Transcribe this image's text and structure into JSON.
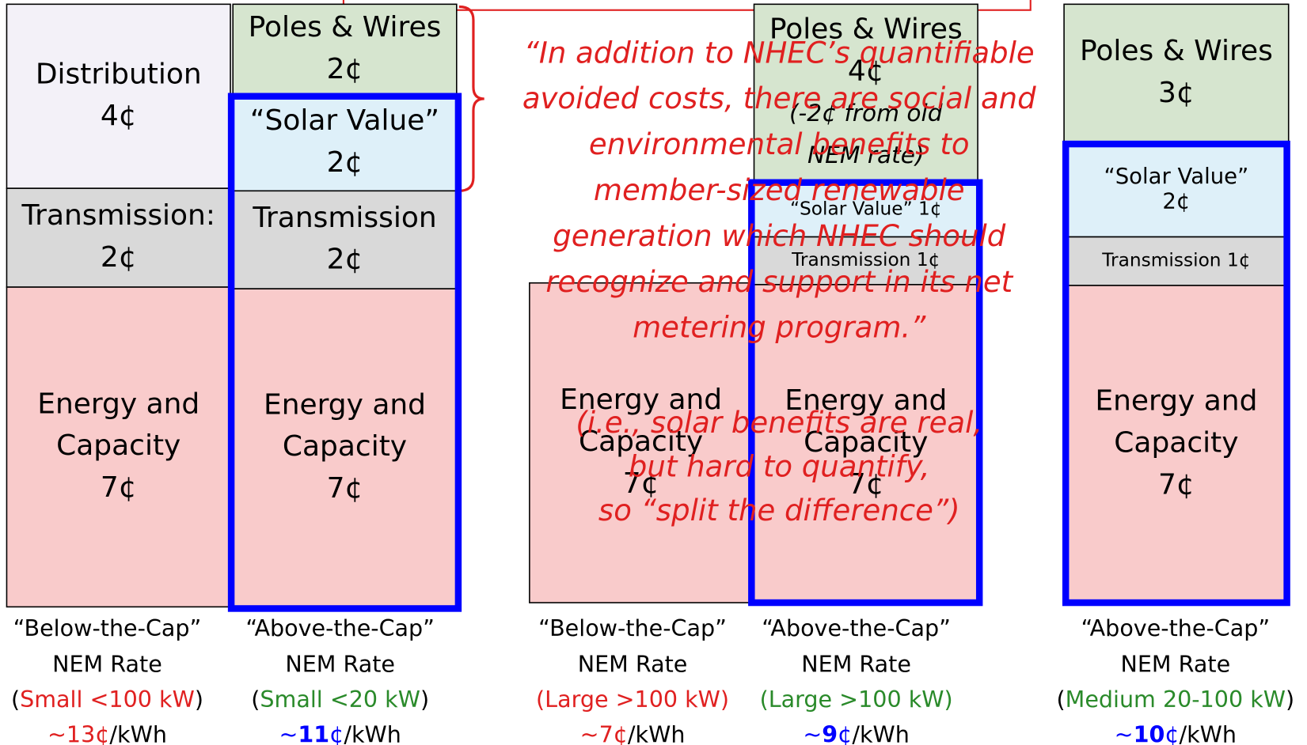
{
  "columns": [
    {
      "segments": [
        {
          "lines": [
            "Distribution",
            "4¢"
          ]
        },
        {
          "lines": [
            "Transmission:",
            "2¢"
          ]
        },
        {
          "lines": [
            "Energy and",
            "Capacity",
            "7¢"
          ]
        }
      ],
      "caption": [
        "“Below-the-Cap”",
        "NEM Rate"
      ],
      "size": [
        "(",
        "Small <100 kW",
        ")"
      ],
      "price": [
        "~13¢"
      ],
      "unit": "/kWh"
    },
    {
      "segments": [
        {
          "lines": [
            "Poles & Wires",
            "2¢"
          ]
        },
        {
          "lines": [
            "“Solar Value”",
            "2¢"
          ]
        },
        {
          "lines": [
            "Transmission",
            "2¢"
          ]
        },
        {
          "lines": [
            "Energy and",
            "Capacity",
            "7¢"
          ]
        }
      ],
      "caption": [
        "“Above-the-Cap”",
        "NEM Rate"
      ],
      "size": [
        "(",
        "Small <20 kW",
        ")"
      ],
      "price": [
        "~",
        "11",
        "¢"
      ],
      "unit": "/kWh"
    },
    {
      "segments": [
        {
          "lines": [
            "Energy and",
            "Capacity",
            "7¢"
          ]
        }
      ],
      "caption": [
        "“Below-the-Cap”",
        "NEM Rate"
      ],
      "size": [
        "(",
        "Large >100 kW",
        ")"
      ],
      "price": [
        "~7¢"
      ],
      "unit": "/kWh"
    },
    {
      "segments": [
        {
          "lines": [
            "Poles & Wires",
            "4¢"
          ],
          "note": [
            "(-2¢ from old",
            "NEM rate)"
          ]
        },
        {
          "lines": [
            "“Solar Value” 1¢"
          ]
        },
        {
          "lines": [
            "Transmission 1¢"
          ]
        },
        {
          "lines": [
            "Energy and",
            "Capacity",
            "7¢"
          ]
        }
      ],
      "caption": [
        "“Above-the-Cap”",
        "NEM Rate"
      ],
      "size": [
        "(",
        "Large >100 kW",
        ")"
      ],
      "price": [
        "~",
        "9",
        "¢"
      ],
      "unit": "/kWh"
    },
    {
      "segments": [
        {
          "lines": [
            "Poles & Wires",
            "3¢"
          ]
        },
        {
          "lines": [
            "“Solar Value”",
            "2¢"
          ]
        },
        {
          "lines": [
            "Transmission 1¢"
          ]
        },
        {
          "lines": [
            "Energy and",
            "Capacity",
            "7¢"
          ]
        }
      ],
      "caption": [
        "“Above-the-Cap”",
        "NEM Rate"
      ],
      "size": [
        "(",
        "Medium 20-100 kW",
        ")"
      ],
      "price": [
        "~",
        "10",
        "¢"
      ],
      "unit": "/kWh"
    }
  ],
  "quote": [
    "“In addition to NHEC’s quantifiable",
    "avoided costs, there are social and",
    "environmental benefits to",
    "member-sized renewable",
    "generation which NHEC should",
    "recognize and support in its net",
    "metering program.”"
  ],
  "aside": [
    "(i.e., solar benefits are real,",
    "but hard to quantify,",
    "so “split the difference”)"
  ]
}
